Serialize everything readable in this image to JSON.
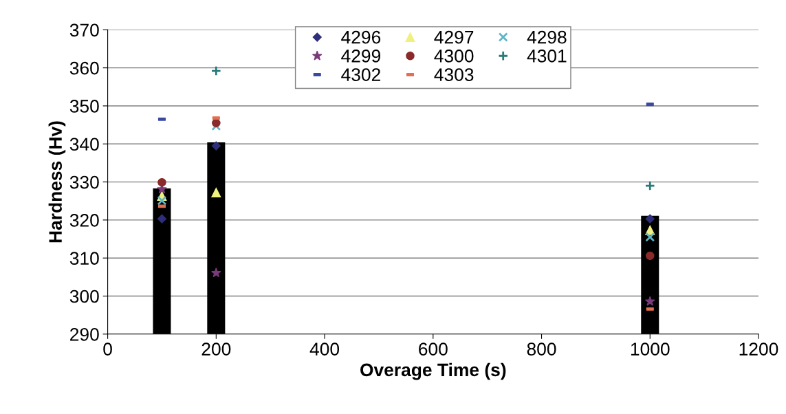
{
  "chart_data": {
    "type": "scatter",
    "xlabel": "Overage Time (s)",
    "ylabel": "Hardness (Hv)",
    "x": [
      100,
      200,
      1000
    ],
    "series": [
      {
        "type": "bar",
        "color": "#000000",
        "values": [
          328.3,
          340.4,
          321.1
        ]
      },
      {
        "name": "4296",
        "color": "#2e2e7a",
        "marker": "diamond",
        "values": [
          320.3,
          339.5,
          320.3
        ]
      },
      {
        "name": "4297",
        "color": "#f0f080",
        "marker": "triangle",
        "values": [
          326.3,
          327.2,
          317.3
        ]
      },
      {
        "name": "4298",
        "color": "#5fb5c8",
        "marker": "cross",
        "values": [
          325.1,
          344.7,
          315.5
        ]
      },
      {
        "name": "4299",
        "color": "#7a3a7a",
        "marker": "star",
        "values": [
          328.1,
          306.1,
          298.6
        ]
      },
      {
        "name": "4300",
        "color": "#8b2a2a",
        "marker": "circle",
        "values": [
          329.9,
          345.5,
          310.6
        ]
      },
      {
        "name": "4301",
        "color": "#2a7a7a",
        "marker": "plus",
        "values": [
          null,
          359.2,
          329.0
        ]
      },
      {
        "name": "4302",
        "color": "#3a4aa0",
        "marker": "square",
        "values": [
          346.5,
          null,
          350.4
        ]
      },
      {
        "name": "4303",
        "color": "#e07050",
        "marker": "square",
        "values": [
          323.6,
          346.8,
          296.6
        ]
      }
    ],
    "xlim": [
      0,
      1200
    ],
    "xticks": [
      0,
      200,
      400,
      600,
      800,
      1000,
      1200
    ],
    "ylim": [
      290,
      370
    ],
    "yticks": [
      290,
      300,
      310,
      320,
      330,
      340,
      350,
      360,
      370
    ],
    "grid": "y",
    "legend": "top"
  }
}
